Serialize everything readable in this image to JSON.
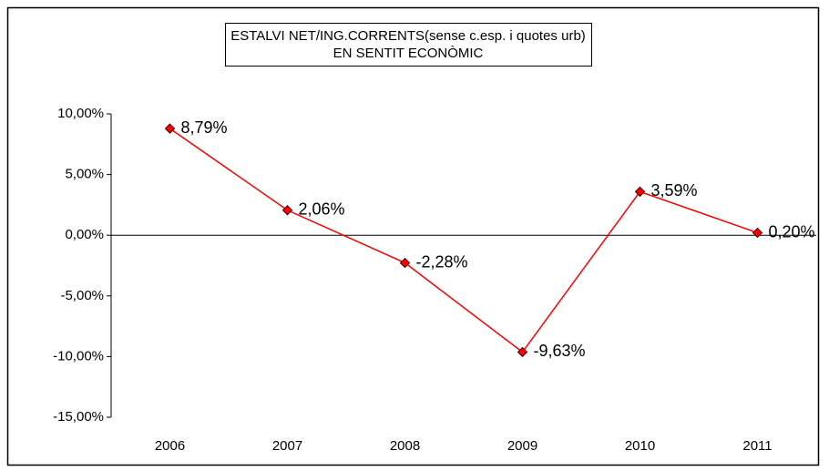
{
  "chart_data": {
    "type": "line",
    "title": [
      "ESTALVI NET/ING.CORRENTS(sense c.esp. i quotes urb)",
      "EN SENTIT ECONÒMIC"
    ],
    "categories": [
      "2006",
      "2007",
      "2008",
      "2009",
      "2010",
      "2011"
    ],
    "series": [
      {
        "color": "#ff0000",
        "values": [
          8.79,
          2.06,
          -2.28,
          -9.63,
          3.59,
          0.2
        ],
        "value_labels": [
          "8,79%",
          "2,06%",
          "-2,28%",
          "-9,63%",
          "3,59%",
          "0,20%"
        ]
      }
    ],
    "ylim": [
      -15,
      10
    ],
    "yticks": [
      {
        "value": -15,
        "label": "-15,00%"
      },
      {
        "value": -10,
        "label": "-10,00%"
      },
      {
        "value": -5,
        "label": "-5,00%"
      },
      {
        "value": 0,
        "label": "0,00%"
      },
      {
        "value": 5,
        "label": "5,00%"
      },
      {
        "value": 10,
        "label": "10,00%"
      }
    ],
    "grid": false
  }
}
